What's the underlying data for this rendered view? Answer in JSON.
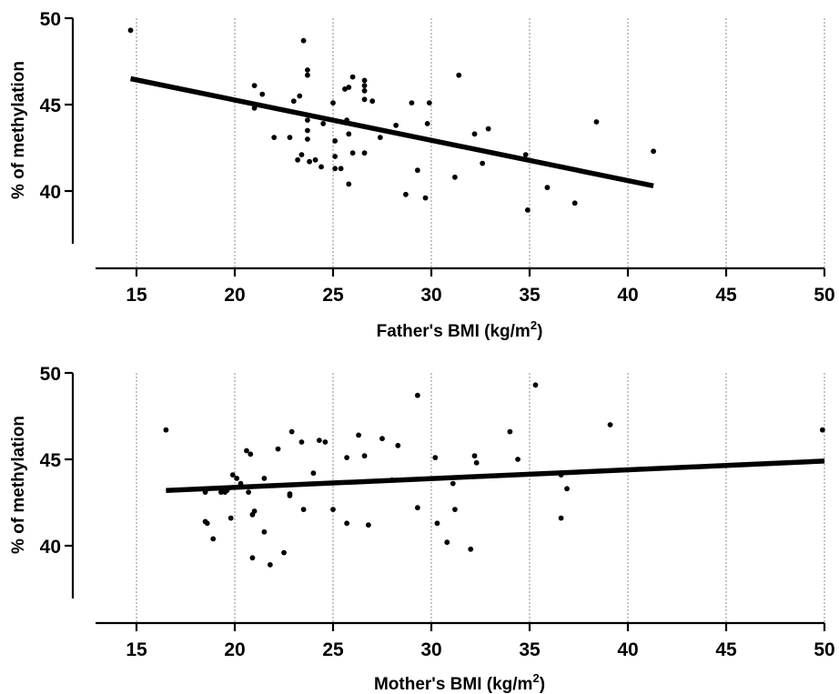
{
  "chart_data": [
    {
      "type": "scatter",
      "xlabel": {
        "prefix": "Father's BMI (kg/m",
        "sup": "2",
        "suffix": ")"
      },
      "ylabel": "% of methylation",
      "xlim": [
        12.5,
        50
      ],
      "ylim": [
        37,
        50
      ],
      "xticks": [
        15,
        20,
        25,
        30,
        35,
        40,
        45,
        50
      ],
      "yticks": [
        40,
        45,
        50
      ],
      "grid": "vertical-dotted",
      "points": [
        [
          14.7,
          49.3
        ],
        [
          21.0,
          46.1
        ],
        [
          21.0,
          44.8
        ],
        [
          21.4,
          45.6
        ],
        [
          22.0,
          43.1
        ],
        [
          22.8,
          43.1
        ],
        [
          23.0,
          45.2
        ],
        [
          23.2,
          41.8
        ],
        [
          23.3,
          45.5
        ],
        [
          23.4,
          42.1
        ],
        [
          23.5,
          48.7
        ],
        [
          23.7,
          47.0
        ],
        [
          23.7,
          46.7
        ],
        [
          23.7,
          44.1
        ],
        [
          23.7,
          43.5
        ],
        [
          23.7,
          43.0
        ],
        [
          23.8,
          41.7
        ],
        [
          24.1,
          41.8
        ],
        [
          24.4,
          41.4
        ],
        [
          24.5,
          43.9
        ],
        [
          25.0,
          45.1
        ],
        [
          25.1,
          42.9
        ],
        [
          25.1,
          42.0
        ],
        [
          25.1,
          41.3
        ],
        [
          25.4,
          41.3
        ],
        [
          25.6,
          45.9
        ],
        [
          25.7,
          44.1
        ],
        [
          25.8,
          46.0
        ],
        [
          25.8,
          43.3
        ],
        [
          25.8,
          40.4
        ],
        [
          26.0,
          46.6
        ],
        [
          26.0,
          42.2
        ],
        [
          26.6,
          46.4
        ],
        [
          26.6,
          46.1
        ],
        [
          26.6,
          45.8
        ],
        [
          26.6,
          45.3
        ],
        [
          26.6,
          42.2
        ],
        [
          27.0,
          45.2
        ],
        [
          27.4,
          43.1
        ],
        [
          28.2,
          43.8
        ],
        [
          28.7,
          39.8
        ],
        [
          29.0,
          45.1
        ],
        [
          29.3,
          41.2
        ],
        [
          29.7,
          39.6
        ],
        [
          29.8,
          43.9
        ],
        [
          29.9,
          45.1
        ],
        [
          31.2,
          40.8
        ],
        [
          31.4,
          46.7
        ],
        [
          32.2,
          43.3
        ],
        [
          32.6,
          41.6
        ],
        [
          32.9,
          43.6
        ],
        [
          34.8,
          42.1
        ],
        [
          34.9,
          38.9
        ],
        [
          35.9,
          40.2
        ],
        [
          37.3,
          39.3
        ],
        [
          38.4,
          44.0
        ],
        [
          41.3,
          42.3
        ]
      ],
      "fit_line": {
        "x": [
          14.7,
          41.3
        ],
        "y": [
          46.5,
          40.3
        ]
      }
    },
    {
      "type": "scatter",
      "xlabel": {
        "prefix": "Mother's BMI (kg/m",
        "sup": "2",
        "suffix": ")"
      },
      "ylabel": "% of methylation",
      "xlim": [
        12.5,
        50
      ],
      "ylim": [
        37,
        50
      ],
      "xticks": [
        15,
        20,
        25,
        30,
        35,
        40,
        45,
        50
      ],
      "yticks": [
        40,
        45,
        50
      ],
      "grid": "vertical-dotted",
      "points": [
        [
          16.5,
          46.7
        ],
        [
          18.5,
          43.1
        ],
        [
          18.5,
          41.4
        ],
        [
          18.6,
          41.3
        ],
        [
          18.9,
          40.4
        ],
        [
          19.3,
          43.1
        ],
        [
          19.5,
          43.1
        ],
        [
          19.6,
          43.2
        ],
        [
          19.8,
          41.6
        ],
        [
          19.9,
          44.1
        ],
        [
          20.1,
          43.9
        ],
        [
          20.3,
          43.6
        ],
        [
          20.6,
          45.5
        ],
        [
          20.7,
          43.1
        ],
        [
          20.8,
          45.3
        ],
        [
          20.9,
          41.8
        ],
        [
          20.9,
          39.3
        ],
        [
          21.0,
          42.0
        ],
        [
          21.5,
          43.9
        ],
        [
          21.5,
          40.8
        ],
        [
          21.8,
          38.9
        ],
        [
          22.2,
          45.6
        ],
        [
          22.5,
          39.6
        ],
        [
          22.8,
          43.0
        ],
        [
          22.8,
          42.9
        ],
        [
          22.9,
          46.6
        ],
        [
          23.4,
          46.0
        ],
        [
          23.5,
          42.1
        ],
        [
          24.0,
          44.2
        ],
        [
          24.3,
          46.1
        ],
        [
          24.6,
          46.0
        ],
        [
          25.0,
          42.1
        ],
        [
          25.7,
          45.1
        ],
        [
          25.7,
          41.3
        ],
        [
          26.3,
          46.4
        ],
        [
          26.6,
          45.2
        ],
        [
          26.8,
          41.2
        ],
        [
          27.5,
          46.2
        ],
        [
          28.0,
          43.8
        ],
        [
          28.3,
          45.8
        ],
        [
          29.3,
          48.7
        ],
        [
          29.3,
          42.2
        ],
        [
          30.2,
          45.1
        ],
        [
          30.3,
          41.3
        ],
        [
          30.8,
          40.2
        ],
        [
          31.1,
          43.6
        ],
        [
          31.2,
          42.1
        ],
        [
          32.0,
          39.8
        ],
        [
          32.2,
          45.2
        ],
        [
          32.3,
          44.8
        ],
        [
          34.0,
          46.6
        ],
        [
          34.4,
          45.0
        ],
        [
          35.3,
          49.3
        ],
        [
          36.6,
          44.1
        ],
        [
          36.6,
          41.6
        ],
        [
          36.9,
          43.3
        ],
        [
          39.1,
          47.0
        ],
        [
          49.9,
          46.7
        ]
      ],
      "fit_line": {
        "x": [
          16.5,
          50
        ],
        "y": [
          43.2,
          44.9
        ]
      }
    }
  ]
}
